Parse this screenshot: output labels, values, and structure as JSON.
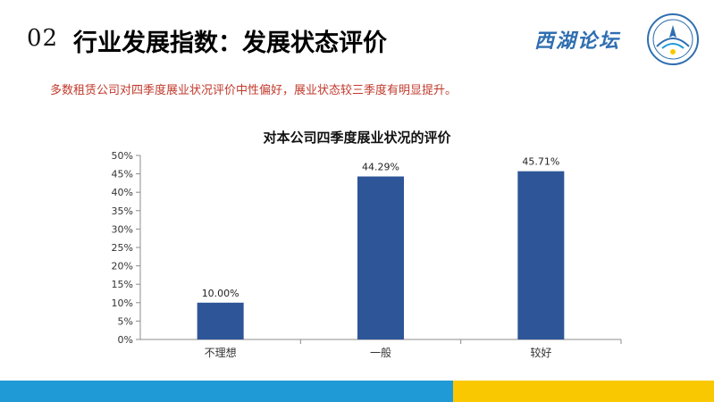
{
  "header": {
    "number": "02",
    "title": "行业发展指数：发展状态评价",
    "brand": "西湖论坛",
    "logo_icon": "circular-forum-emblem-icon"
  },
  "subtitle": "多数租赁公司对四季度展业状况评价中性偏好，展业状态较三季度有明显提升。",
  "colors": {
    "bar": "#2e5597",
    "subtitle": "#c0392b",
    "footer_left": "#1f9ad6",
    "footer_right": "#f9c800"
  },
  "chart_data": {
    "type": "bar",
    "title": "对本公司四季度展业状况的评价",
    "categories": [
      "不理想",
      "一般",
      "较好"
    ],
    "values": [
      10.0,
      44.29,
      45.71
    ],
    "value_labels": [
      "10.00%",
      "44.29%",
      "45.71%"
    ],
    "ylim": [
      0,
      50
    ],
    "yticks": [
      0,
      5,
      10,
      15,
      20,
      25,
      30,
      35,
      40,
      45,
      50
    ],
    "ytick_labels": [
      "0%",
      "5%",
      "10%",
      "15%",
      "20%",
      "25%",
      "30%",
      "35%",
      "40%",
      "45%",
      "50%"
    ],
    "grid": false,
    "legend": "none"
  }
}
